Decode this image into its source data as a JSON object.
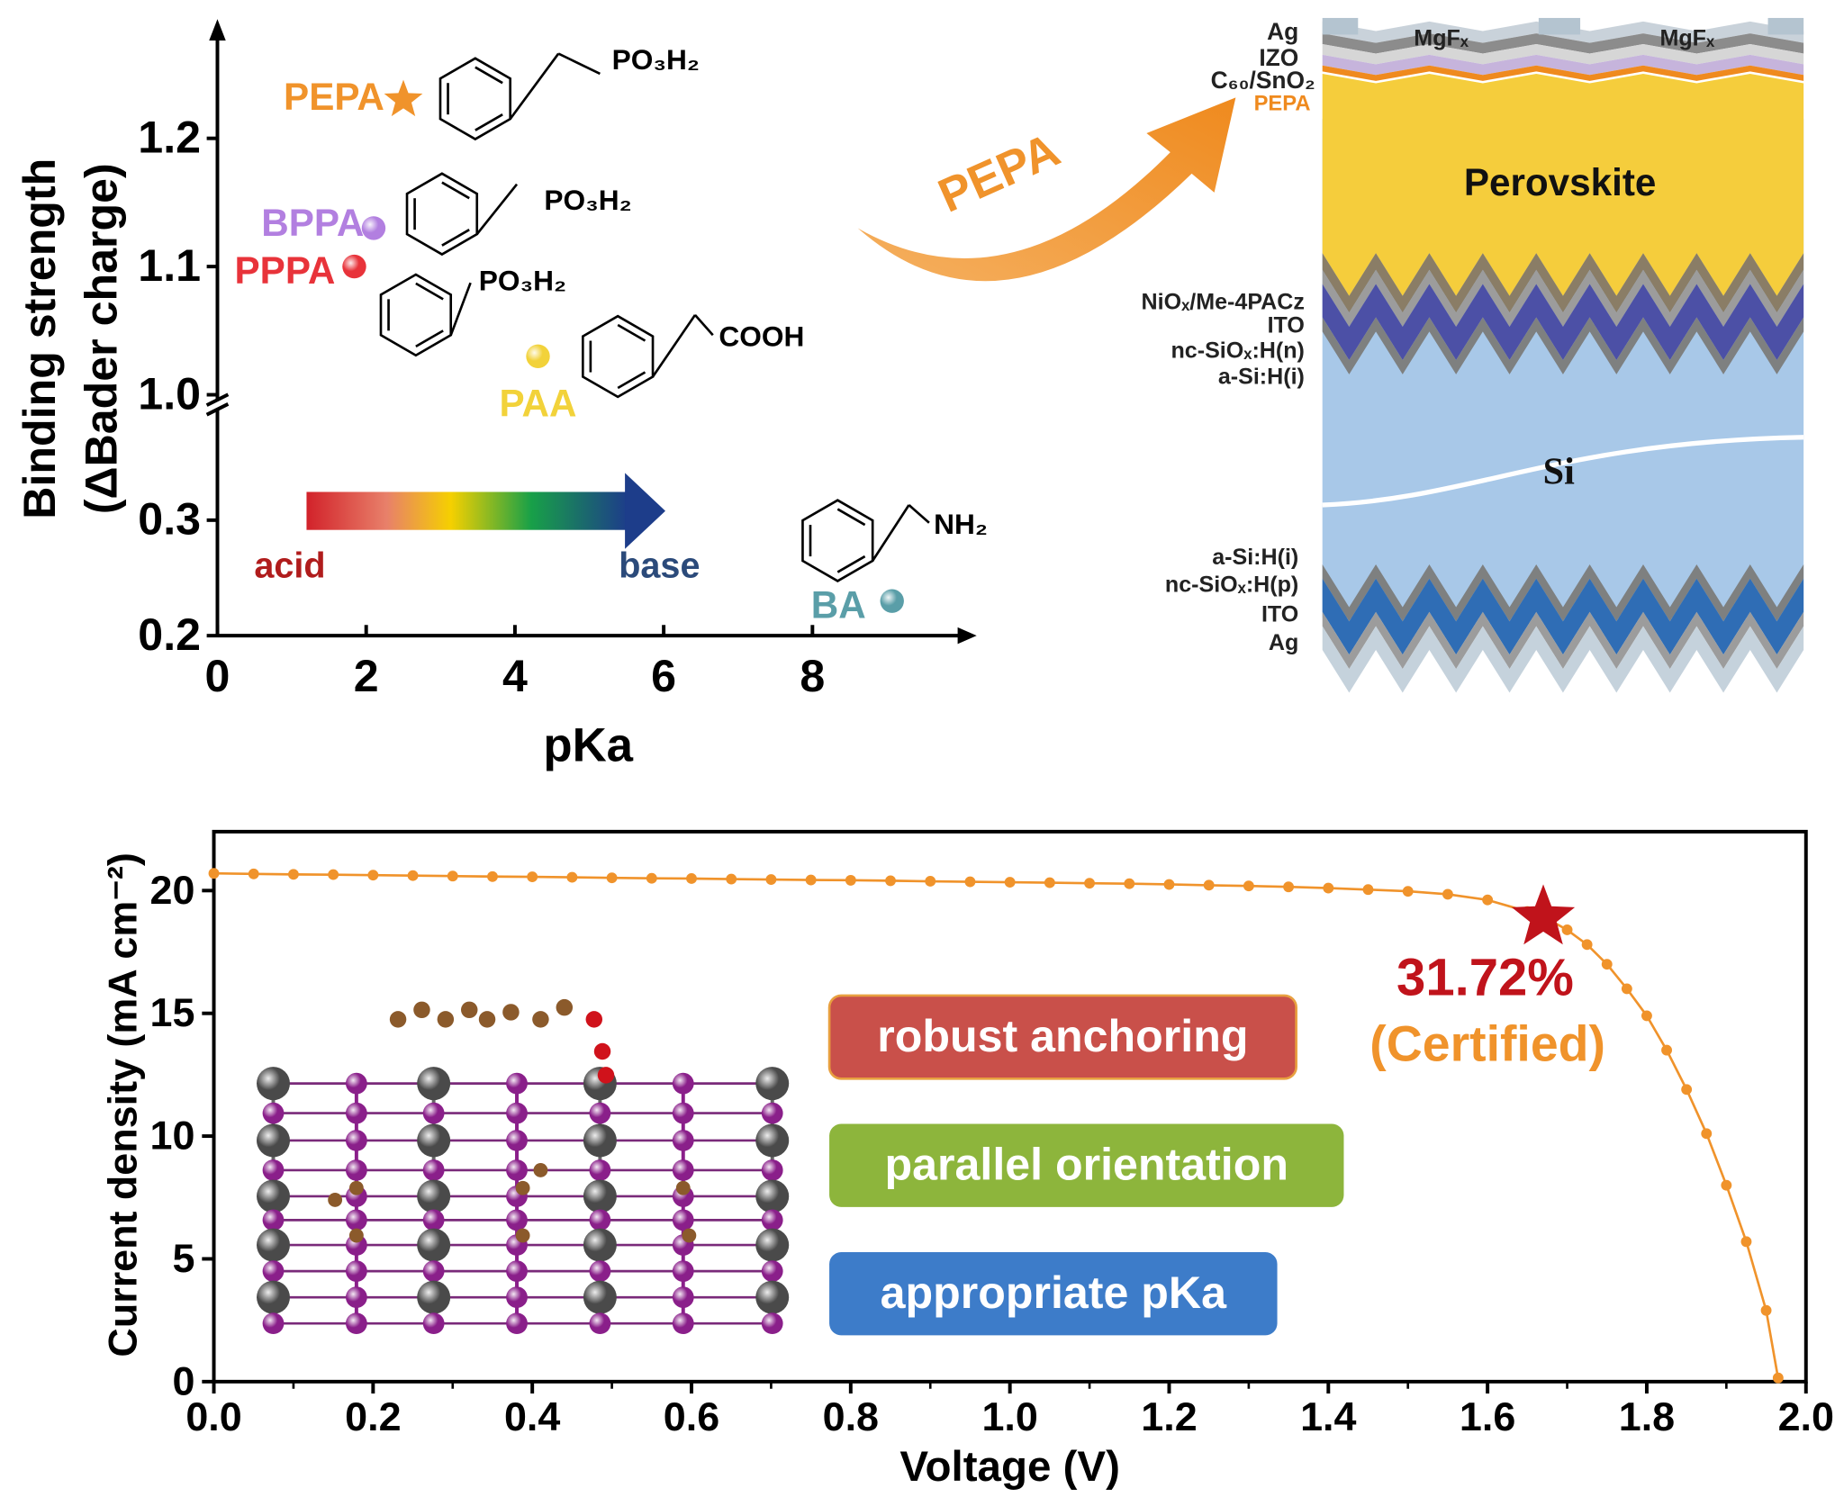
{
  "chart_data": [
    {
      "type": "scatter",
      "y_label": [
        "Binding strength",
        "(ΔBader charge)"
      ],
      "x_label": "pKa",
      "xlim": [
        0,
        10
      ],
      "xticks": [
        0,
        2,
        4,
        6,
        8
      ],
      "segments": [
        {
          "ylim": [
            0.2,
            0.38
          ],
          "yticks": [
            0.2,
            0.3
          ]
        },
        {
          "ylim": [
            0.99,
            1.28
          ],
          "yticks": [
            {
              "value": 1.0,
              "label": "1.0"
            },
            1.1,
            1.2
          ]
        }
      ],
      "series": [
        {
          "name": "PEPA",
          "color": "#f0932b",
          "marker": "star",
          "x": [
            2.5
          ],
          "values": [
            1.23
          ],
          "structure": "PO₃H₂"
        },
        {
          "name": "BPPA",
          "color": "#b27fe0",
          "marker": "sphere",
          "x": [
            2.1
          ],
          "values": [
            1.13
          ],
          "structure": "PO₃H₂"
        },
        {
          "name": "PPPA",
          "color": "#e8333a",
          "marker": "sphere",
          "x": [
            1.84
          ],
          "values": [
            1.1
          ],
          "structure": "PO₃H₂"
        },
        {
          "name": "PAA",
          "color": "#f2d23a",
          "marker": "sphere",
          "x": [
            4.31
          ],
          "values": [
            1.03
          ],
          "structure": "COOH"
        },
        {
          "name": "BA",
          "color": "#5a9ea8",
          "marker": "sphere",
          "x": [
            9.07
          ],
          "values": [
            0.23
          ],
          "structure": "NH₂"
        }
      ],
      "gradient": {
        "start": "acid",
        "end": "base"
      }
    },
    {
      "type": "line",
      "x_label": "Voltage (V)",
      "y_label": "Current density (mA cm⁻²)",
      "xlim": [
        0,
        2
      ],
      "ylim": [
        0,
        22.4
      ],
      "xticks": [
        {
          "value": 0,
          "label": "0.0"
        },
        0.2,
        0.4,
        0.6,
        0.8,
        {
          "value": 1,
          "label": "1.0"
        },
        1.2,
        1.4,
        1.6,
        1.8,
        {
          "value": 2,
          "label": "2.0"
        }
      ],
      "yticks": [
        0,
        5,
        10,
        15,
        20
      ],
      "series": [
        {
          "color": "#f0932b",
          "x": [
            0,
            0.05,
            0.1,
            0.15,
            0.2,
            0.25,
            0.3,
            0.35,
            0.4,
            0.45,
            0.5,
            0.55,
            0.6,
            0.65,
            0.7,
            0.75,
            0.8,
            0.85,
            0.9,
            0.95,
            1.0,
            1.05,
            1.1,
            1.15,
            1.2,
            1.25,
            1.3,
            1.35,
            1.4,
            1.45,
            1.5,
            1.55,
            1.6,
            1.65,
            1.675,
            1.7,
            1.725,
            1.75,
            1.775,
            1.8,
            1.825,
            1.85,
            1.875,
            1.9,
            1.925,
            1.95,
            1.965
          ],
          "values": [
            20.7,
            20.68,
            20.66,
            20.65,
            20.63,
            20.61,
            20.59,
            20.57,
            20.56,
            20.54,
            20.52,
            20.5,
            20.49,
            20.47,
            20.45,
            20.43,
            20.42,
            20.4,
            20.38,
            20.36,
            20.34,
            20.32,
            20.3,
            20.28,
            20.25,
            20.22,
            20.19,
            20.15,
            20.1,
            20.04,
            19.97,
            19.85,
            19.62,
            19.15,
            18.85,
            18.4,
            17.8,
            17.0,
            16.0,
            14.9,
            13.5,
            11.9,
            10.1,
            8.0,
            5.7,
            2.9,
            0.15
          ]
        }
      ],
      "annotations": [
        {
          "x": 1.67,
          "y": 18.9,
          "marker": "star",
          "color": "#c0131b",
          "label": "31.72%",
          "sublabel": "(Certified)"
        }
      ],
      "boxes": [
        {
          "text": "robust anchoring",
          "color": "#c9504a"
        },
        {
          "text": "parallel orientation",
          "color": "#8db53c"
        },
        {
          "text": "appropriate pKa",
          "color": "#3d7cc9"
        }
      ]
    }
  ],
  "diagram": {
    "arrow_label": "PEPA",
    "top_labels": [
      "Ag",
      "IZO",
      "C₆₀/SnO₂",
      "PEPA"
    ],
    "mgf": [
      "MgFₓ",
      "MgFₓ"
    ],
    "perovskite": "Perovskite",
    "middle_labels": [
      "NiOₓ/Me-4PACz",
      "ITO",
      "nc-SiOₓ:H(n)",
      "a-Si:H(i)"
    ],
    "si": "Si",
    "bottom_labels": [
      "a-Si:H(i)",
      "nc-SiOₓ:H(p)",
      "ITO",
      "Ag"
    ]
  }
}
